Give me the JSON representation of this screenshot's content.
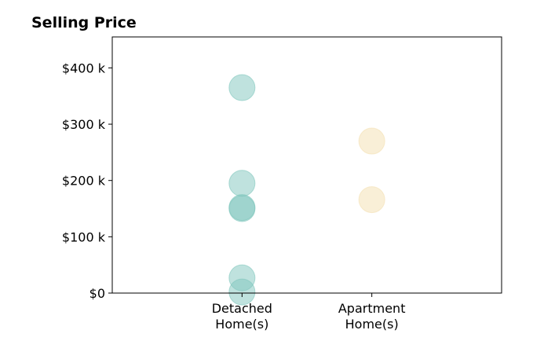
{
  "chart_data": {
    "type": "scatter",
    "title": "Selling Price",
    "xlabel": "",
    "ylabel": "",
    "categories": [
      [
        "Detached",
        "Home(s)"
      ],
      [
        "Apartment",
        "Home(s)"
      ]
    ],
    "x_range": [
      -1,
      2
    ],
    "ylim": [
      0,
      455000
    ],
    "y_ticks": [
      {
        "value": 0,
        "label": "$0"
      },
      {
        "value": 100000,
        "label": "$100 k"
      },
      {
        "value": 200000,
        "label": "$200 k"
      },
      {
        "value": 300000,
        "label": "$300 k"
      },
      {
        "value": 400000,
        "label": "$400 k"
      }
    ],
    "grid": false,
    "legend": "none",
    "series": [
      {
        "category": 0,
        "color": "#7fc6bd",
        "values": [
          365000,
          195000,
          150000,
          152000,
          27000,
          2000
        ]
      },
      {
        "category": 1,
        "color": "#f3dfb0",
        "values": [
          270000,
          166000
        ]
      }
    ]
  }
}
